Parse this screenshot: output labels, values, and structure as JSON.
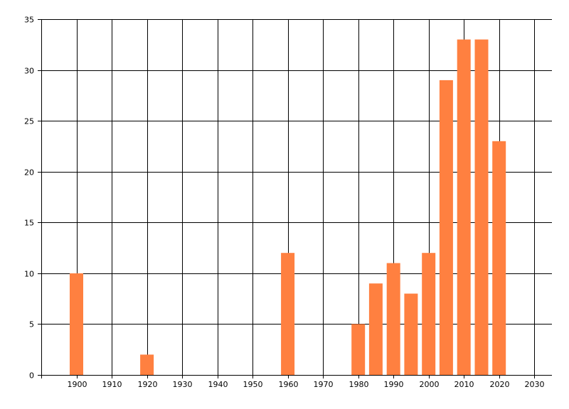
{
  "chart_data": {
    "type": "bar",
    "title": "",
    "xlabel": "",
    "ylabel": "",
    "x": [
      1900,
      1920,
      1960,
      1980,
      1985,
      1990,
      1995,
      2000,
      2005,
      2010,
      2015,
      2020
    ],
    "values": [
      10,
      2,
      12,
      5,
      9,
      11,
      8,
      12,
      29,
      33,
      33,
      23
    ],
    "xlim": [
      1890,
      2035
    ],
    "ylim": [
      0,
      35
    ],
    "x_ticks": [
      1900,
      1910,
      1920,
      1930,
      1940,
      1950,
      1960,
      1970,
      1980,
      1990,
      2000,
      2010,
      2020,
      2030
    ],
    "y_ticks": [
      0,
      5,
      10,
      15,
      20,
      25,
      30,
      35
    ],
    "grid": true,
    "bar_color": "#FF8040",
    "grid_color": "#000000"
  }
}
